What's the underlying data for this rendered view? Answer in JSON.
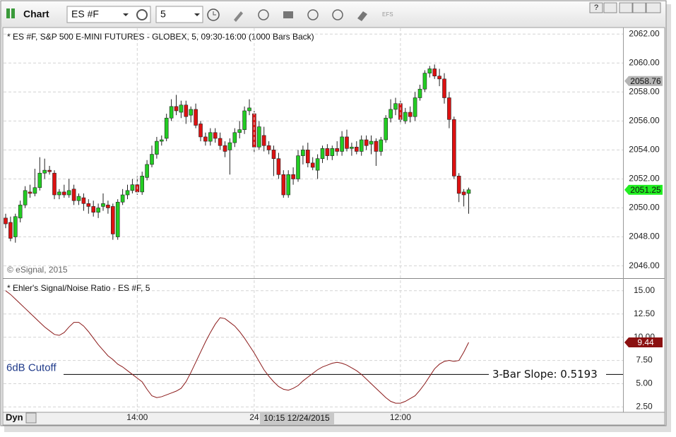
{
  "toolbar": {
    "title": "Chart",
    "symbol": "ES #F",
    "interval": "5",
    "efs": "EFS",
    "help": "?"
  },
  "statusbar": {
    "dyn": "Dyn",
    "cursor_label": "10:15 12/24/2015"
  },
  "chart_data": [
    {
      "type": "candlestick",
      "title": "* ES #F, S&P 500 E-MINI FUTURES - GLOBEX, 5, 09:30-16:00 (1000 Bars Back)",
      "note": "© eSignal, 2015",
      "up_color": "#22cc22",
      "down_color": "#dd1111",
      "grid": true,
      "ylim": [
        2045.2,
        2062.4
      ],
      "yticks": [
        {
          "value": 2046,
          "label": "2046.00"
        },
        {
          "value": 2048,
          "label": "2048.00"
        },
        {
          "value": 2050,
          "label": "2050.00"
        },
        {
          "value": 2052,
          "label": "2052.00"
        },
        {
          "value": 2054,
          "label": "2054.00"
        },
        {
          "value": 2056,
          "label": "2056.00"
        },
        {
          "value": 2058,
          "label": "2058.00"
        },
        {
          "value": 2060,
          "label": "2060.00"
        },
        {
          "value": 2062,
          "label": "2062.00"
        }
      ],
      "markers": [
        {
          "value": 2058.76,
          "color": "#b4b4b4"
        },
        {
          "value": 2051.25,
          "color": "#22ee22"
        }
      ],
      "categories": [
        null,
        null,
        null,
        null,
        null,
        null,
        null,
        null,
        null,
        null,
        null,
        null,
        null,
        null,
        null,
        null,
        null,
        null,
        null,
        null,
        null,
        null,
        null,
        null,
        null,
        null,
        null,
        "14:00",
        null,
        null,
        null,
        null,
        null,
        null,
        null,
        null,
        null,
        null,
        null,
        null,
        null,
        null,
        null,
        null,
        null,
        null,
        null,
        null,
        null,
        null,
        null,
        "24",
        null,
        null,
        null,
        null,
        null,
        null,
        null,
        null,
        null,
        null,
        null,
        null,
        null,
        null,
        null,
        null,
        null,
        null,
        null,
        null,
        null,
        null,
        null,
        null,
        null,
        null,
        null,
        null,
        null,
        "12:00",
        null,
        null,
        null,
        null,
        null,
        null,
        null,
        null,
        null,
        null,
        null,
        null,
        null,
        null
      ],
      "open": [
        2049.3,
        2049.0,
        2048.0,
        2049.3,
        2050.2,
        2051.1,
        2051.0,
        2051.4,
        2052.4,
        2052.6,
        2052.4,
        2050.9,
        2051.1,
        2050.9,
        2051.3,
        2050.5,
        2050.7,
        2050.3,
        2050.1,
        2049.7,
        2050.1,
        2050.2,
        2050.1,
        2048.0,
        2050.4,
        2050.9,
        2051.2,
        2051.6,
        2051.1,
        2052.1,
        2053.0,
        2053.7,
        2054.6,
        2054.8,
        2056.2,
        2057.0,
        2056.6,
        2057.1,
        2056.4,
        2056.8,
        2055.8,
        2054.9,
        2054.6,
        2055.2,
        2054.8,
        2054.3,
        2054.0,
        2054.5,
        2055.2,
        2055.4,
        2056.7,
        2056.5,
        2054.2,
        2055.0,
        2054.3,
        2054.0,
        2053.4,
        2052.3,
        2050.9,
        2052.3,
        2052.0,
        2053.6,
        2054.0,
        2053.1,
        2052.6,
        2053.4,
        2054.1,
        2053.6,
        2054.1,
        2053.9,
        2054.9,
        2054.1,
        2054.2,
        2053.9,
        2054.7,
        2054.4,
        2054.6,
        2053.9,
        2054.7,
        2056.2,
        2056.8,
        2057.2,
        2056.0,
        2056.6,
        2056.3,
        2057.6,
        2058.2,
        2059.3,
        2059.6,
        2059.1,
        2058.9,
        2057.6,
        2056.1,
        2052.2,
        2051.1,
        2051.0
      ],
      "high": [
        2049.6,
        2049.4,
        2049.6,
        2050.5,
        2051.5,
        2051.6,
        2052.7,
        2053.5,
        2053.4,
        2052.9,
        2052.6,
        2051.3,
        2051.6,
        2052.0,
        2051.6,
        2051.0,
        2051.0,
        2050.6,
        2050.5,
        2050.3,
        2051.0,
        2050.5,
        2050.3,
        2050.6,
        2051.3,
        2051.6,
        2052.0,
        2052.2,
        2052.5,
        2053.3,
        2054.3,
        2054.9,
        2055.0,
        2056.5,
        2057.5,
        2057.8,
        2057.4,
        2057.4,
        2057.0,
        2057.2,
        2056.0,
        2055.2,
        2055.5,
        2055.5,
        2055.2,
        2054.6,
        2054.8,
        2055.5,
        2056.0,
        2057.0,
        2057.5,
        2056.7,
        2056.0,
        2055.6,
        2054.6,
        2054.3,
        2053.8,
        2052.6,
        2052.6,
        2052.8,
        2054.0,
        2054.3,
        2054.5,
        2053.5,
        2053.7,
        2054.3,
        2054.4,
        2054.3,
        2054.6,
        2055.3,
        2055.4,
        2054.5,
        2054.6,
        2055.0,
        2055.0,
        2055.0,
        2054.8,
        2054.9,
        2056.4,
        2057.5,
        2057.6,
        2057.4,
        2056.9,
        2057.0,
        2058.0,
        2058.5,
        2059.5,
        2059.8,
        2059.9,
        2059.6,
        2059.3,
        2058.0,
        2056.3,
        2052.4,
        2051.3,
        2051.4
      ],
      "low": [
        2048.6,
        2047.7,
        2047.6,
        2049.0,
        2050.0,
        2050.7,
        2050.8,
        2051.2,
        2052.0,
        2052.3,
        2050.6,
        2050.6,
        2050.7,
        2050.7,
        2050.2,
        2050.2,
        2049.8,
        2049.6,
        2049.4,
        2049.3,
        2049.8,
        2049.6,
        2047.8,
        2047.8,
        2050.2,
        2050.6,
        2051.0,
        2050.9,
        2050.9,
        2051.9,
        2052.8,
        2053.4,
        2054.3,
        2054.6,
        2056.0,
        2056.4,
        2056.2,
        2055.8,
        2055.9,
        2055.5,
        2054.6,
        2054.3,
        2054.3,
        2054.5,
        2054.0,
        2053.5,
        2052.3,
        2054.2,
        2054.8,
        2055.1,
        2056.4,
        2053.8,
        2054.0,
        2053.9,
        2053.7,
        2052.2,
        2052.0,
        2050.7,
        2050.7,
        2051.6,
        2051.8,
        2053.0,
        2052.8,
        2052.6,
        2052.0,
        2053.1,
        2053.3,
        2053.3,
        2053.6,
        2053.6,
        2053.9,
        2053.6,
        2053.7,
        2053.6,
        2054.0,
        2053.7,
        2052.9,
        2053.6,
        2054.5,
        2055.9,
        2056.4,
        2055.8,
        2055.8,
        2055.9,
        2056.0,
        2057.4,
        2058.0,
        2059.0,
        2058.9,
        2058.4,
        2057.2,
        2055.5,
        2052.0,
        2050.4,
        2050.1,
        2049.6
      ],
      "close": [
        2048.9,
        2047.9,
        2049.4,
        2050.2,
        2051.2,
        2051.0,
        2051.4,
        2052.4,
        2052.6,
        2052.5,
        2050.9,
        2051.1,
        2050.9,
        2051.2,
        2050.5,
        2050.8,
        2050.3,
        2050.1,
        2049.7,
        2050.0,
        2050.3,
        2050.0,
        2048.2,
        2050.4,
        2050.9,
        2051.2,
        2051.6,
        2051.1,
        2052.2,
        2053.0,
        2053.7,
        2054.6,
        2054.7,
        2056.2,
        2057.0,
        2056.7,
        2057.1,
        2056.3,
        2056.8,
        2055.7,
        2054.9,
        2054.6,
        2055.2,
        2054.8,
        2054.3,
        2053.9,
        2054.5,
        2055.2,
        2055.4,
        2056.7,
        2056.9,
        2054.2,
        2055.6,
        2054.3,
        2054.0,
        2053.4,
        2052.3,
        2050.9,
        2052.3,
        2052.0,
        2053.6,
        2054.0,
        2053.1,
        2052.8,
        2053.4,
        2054.1,
        2053.6,
        2054.1,
        2053.9,
        2054.9,
        2054.1,
        2054.2,
        2053.9,
        2054.7,
        2054.3,
        2054.6,
        2053.9,
        2054.7,
        2056.2,
        2056.8,
        2057.2,
        2056.1,
        2056.6,
        2056.3,
        2057.6,
        2058.2,
        2059.3,
        2059.6,
        2059.1,
        2058.9,
        2057.6,
        2056.1,
        2052.2,
        2051.0,
        2050.9,
        2051.25
      ]
    },
    {
      "type": "line",
      "title": "* Ehler's Signal/Noise Ratio - ES #F, 5",
      "color": "#8b1a1a",
      "grid": true,
      "ylim": [
        2.0,
        16.2
      ],
      "yticks": [
        {
          "value": 2.5,
          "label": "2.50"
        },
        {
          "value": 5,
          "label": "5.00"
        },
        {
          "value": 7.5,
          "label": "7.50"
        },
        {
          "value": 10,
          "label": "10.00"
        },
        {
          "value": 12.5,
          "label": "12.50"
        },
        {
          "value": 15,
          "label": "15.00"
        }
      ],
      "markers": [
        {
          "value": 9.44,
          "color": "#8b1010"
        }
      ],
      "cutoff": {
        "value": 6,
        "label": "6dB Cutoff"
      },
      "annotation": "3-Bar Slope: 0.5193",
      "values": [
        15.0,
        14.6,
        14.1,
        13.6,
        13.1,
        12.6,
        12.1,
        11.6,
        11.1,
        10.7,
        10.3,
        10.2,
        10.5,
        11.1,
        11.6,
        11.6,
        11.2,
        10.6,
        9.9,
        9.2,
        8.6,
        8.0,
        7.6,
        7.1,
        6.8,
        6.4,
        6.0,
        5.6,
        5.2,
        4.4,
        3.7,
        3.5,
        3.6,
        3.8,
        4.0,
        4.2,
        4.5,
        5.2,
        6.2,
        7.3,
        8.4,
        9.5,
        10.5,
        11.4,
        12.1,
        12.0,
        11.6,
        11.2,
        10.6,
        9.9,
        9.1,
        8.3,
        7.4,
        6.5,
        5.8,
        5.2,
        4.7,
        4.4,
        4.3,
        4.5,
        4.8,
        5.3,
        5.7,
        6.1,
        6.5,
        6.8,
        7.0,
        7.2,
        7.3,
        7.2,
        7.0,
        6.7,
        6.4,
        6.0,
        5.5,
        5.0,
        4.5,
        4.0,
        3.5,
        3.1,
        2.9,
        2.9,
        3.1,
        3.4,
        3.7,
        4.3,
        5.0,
        5.8,
        6.6,
        7.1,
        7.4,
        7.5,
        7.4,
        7.5,
        8.4,
        9.44
      ]
    }
  ]
}
